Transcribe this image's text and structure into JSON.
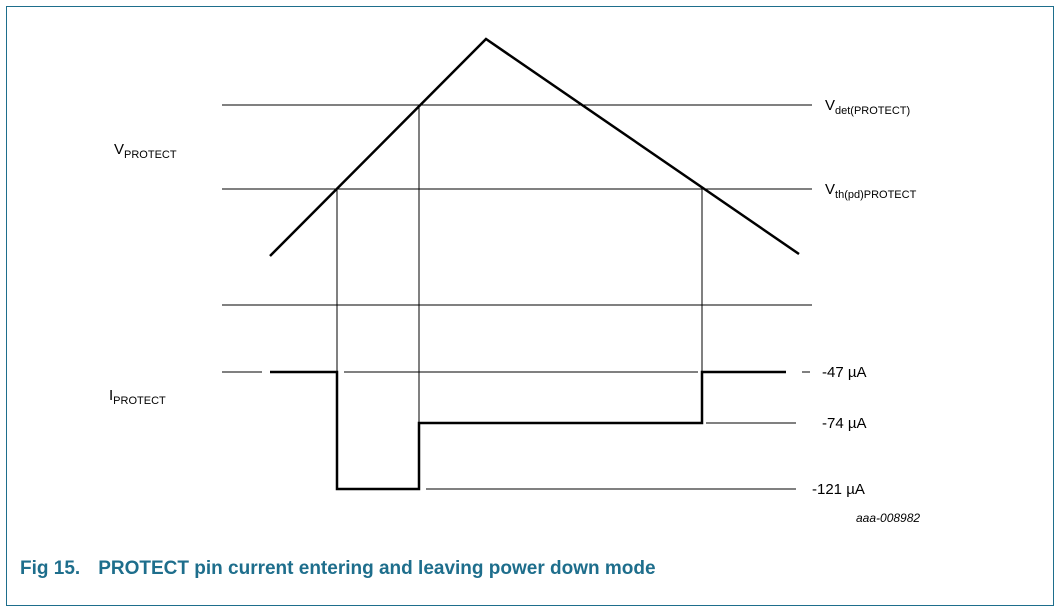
{
  "labels": {
    "v_protect_main": "V",
    "v_protect_sub": "PROTECT",
    "i_protect_main": "I",
    "i_protect_sub": "PROTECT",
    "v_det_main": "V",
    "v_det_sub": "det(PROTECT)",
    "v_th_main": "V",
    "v_th_sub": "th(pd)PROTECT",
    "current_47": "-47 µA",
    "current_74": "-74 µA",
    "current_121": "-121 µA",
    "figure_id": "aaa-008982"
  },
  "caption": {
    "number": "Fig 15.",
    "title": "PROTECT pin current entering and leaving power down mode"
  },
  "colors": {
    "frame": "#1e6e8c",
    "caption": "#1e6e8c",
    "trace": "#000000"
  }
}
